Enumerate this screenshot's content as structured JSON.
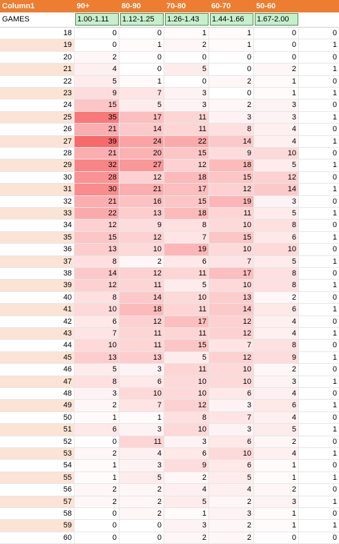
{
  "header": {
    "first_label": "Column1",
    "columns": [
      "90+",
      "80-90",
      "70-80",
      "60-70",
      "50-60",
      ""
    ]
  },
  "games_row": {
    "label": "GAMES",
    "ranges": [
      "1.00-1.11",
      "1.12-1.25",
      "1.26-1.43",
      "1.44-1.66",
      "1.67-2.00"
    ]
  },
  "colors": {
    "header_bg": "#ed7d31",
    "band_bg": "#fbe4d5",
    "range_bg": "#c6efce",
    "heat_high": "#f8696b",
    "heat_low": "#ffffff"
  },
  "heat_max": 39,
  "rows": [
    {
      "id": "18",
      "values": [
        0,
        0,
        1,
        1,
        0,
        0
      ]
    },
    {
      "id": "19",
      "values": [
        0,
        1,
        2,
        1,
        0,
        1
      ]
    },
    {
      "id": "20",
      "values": [
        2,
        0,
        0,
        0,
        0,
        0
      ]
    },
    {
      "id": "21",
      "values": [
        4,
        0,
        5,
        0,
        2,
        1
      ]
    },
    {
      "id": "22",
      "values": [
        5,
        1,
        0,
        2,
        1,
        0
      ]
    },
    {
      "id": "23",
      "values": [
        9,
        7,
        3,
        0,
        1,
        1
      ]
    },
    {
      "id": "24",
      "values": [
        15,
        5,
        3,
        2,
        3,
        0
      ]
    },
    {
      "id": "25",
      "values": [
        35,
        17,
        11,
        3,
        3,
        1
      ]
    },
    {
      "id": "26",
      "values": [
        21,
        14,
        11,
        8,
        4,
        0
      ]
    },
    {
      "id": "27",
      "values": [
        39,
        24,
        22,
        14,
        4,
        1
      ]
    },
    {
      "id": "28",
      "values": [
        21,
        20,
        15,
        9,
        10,
        0
      ]
    },
    {
      "id": "29",
      "values": [
        32,
        27,
        12,
        18,
        5,
        1
      ]
    },
    {
      "id": "30",
      "values": [
        28,
        12,
        18,
        15,
        12,
        0
      ]
    },
    {
      "id": "31",
      "values": [
        30,
        21,
        17,
        12,
        14,
        1
      ]
    },
    {
      "id": "32",
      "values": [
        21,
        16,
        15,
        19,
        3,
        0
      ]
    },
    {
      "id": "33",
      "values": [
        22,
        13,
        18,
        11,
        5,
        1
      ]
    },
    {
      "id": "34",
      "values": [
        12,
        9,
        8,
        10,
        8,
        0
      ]
    },
    {
      "id": "35",
      "values": [
        15,
        12,
        7,
        15,
        6,
        1
      ]
    },
    {
      "id": "36",
      "values": [
        13,
        10,
        19,
        10,
        10,
        0
      ]
    },
    {
      "id": "37",
      "values": [
        8,
        2,
        6,
        7,
        5,
        1
      ]
    },
    {
      "id": "38",
      "values": [
        14,
        12,
        11,
        17,
        8,
        0
      ]
    },
    {
      "id": "39",
      "values": [
        12,
        11,
        5,
        10,
        8,
        1
      ]
    },
    {
      "id": "40",
      "values": [
        8,
        14,
        10,
        13,
        2,
        0
      ]
    },
    {
      "id": "41",
      "values": [
        10,
        18,
        11,
        14,
        6,
        1
      ]
    },
    {
      "id": "42",
      "values": [
        6,
        12,
        17,
        12,
        4,
        0
      ]
    },
    {
      "id": "43",
      "values": [
        7,
        11,
        11,
        12,
        4,
        1
      ]
    },
    {
      "id": "44",
      "values": [
        10,
        11,
        15,
        7,
        8,
        0
      ]
    },
    {
      "id": "45",
      "values": [
        13,
        13,
        5,
        12,
        9,
        1
      ]
    },
    {
      "id": "46",
      "values": [
        5,
        3,
        11,
        10,
        2,
        0
      ]
    },
    {
      "id": "47",
      "values": [
        8,
        6,
        10,
        10,
        3,
        1
      ]
    },
    {
      "id": "48",
      "values": [
        3,
        10,
        10,
        6,
        4,
        0
      ]
    },
    {
      "id": "49",
      "values": [
        2,
        7,
        12,
        3,
        6,
        1
      ]
    },
    {
      "id": "50",
      "values": [
        1,
        1,
        8,
        7,
        4,
        0
      ]
    },
    {
      "id": "51",
      "values": [
        6,
        3,
        10,
        3,
        5,
        1
      ]
    },
    {
      "id": "52",
      "values": [
        0,
        11,
        3,
        6,
        2,
        0
      ]
    },
    {
      "id": "53",
      "values": [
        2,
        4,
        6,
        10,
        4,
        1
      ]
    },
    {
      "id": "54",
      "values": [
        1,
        3,
        9,
        6,
        1,
        0
      ]
    },
    {
      "id": "55",
      "values": [
        1,
        5,
        2,
        5,
        1,
        1
      ]
    },
    {
      "id": "56",
      "values": [
        2,
        2,
        4,
        4,
        2,
        0
      ]
    },
    {
      "id": "57",
      "values": [
        2,
        2,
        5,
        2,
        3,
        1
      ]
    },
    {
      "id": "58",
      "values": [
        0,
        2,
        1,
        3,
        1,
        0
      ]
    },
    {
      "id": "59",
      "values": [
        0,
        0,
        3,
        2,
        1,
        1
      ]
    },
    {
      "id": "60",
      "values": [
        0,
        0,
        2,
        2,
        0,
        0
      ]
    }
  ]
}
